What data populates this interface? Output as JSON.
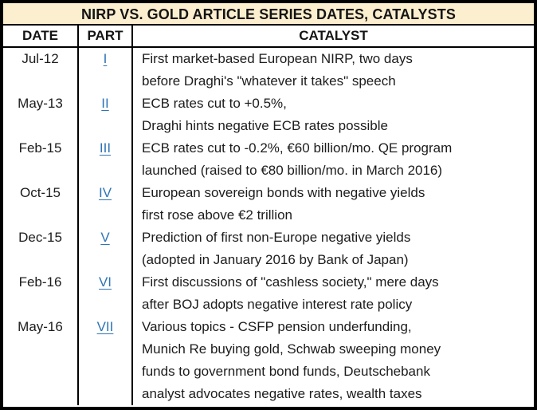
{
  "chart_data": {
    "type": "table",
    "title": "NIRP VS. GOLD ARTICLE SERIES DATES, CATALYSTS",
    "columns": [
      "DATE",
      "PART",
      "CATALYST"
    ],
    "rows": [
      {
        "date": "Jul-12",
        "part": "I",
        "lines": [
          "First market-based European NIRP, two days",
          "before Draghi's \"whatever it takes\" speech"
        ]
      },
      {
        "date": "May-13",
        "part": "II",
        "lines": [
          "ECB rates cut to +0.5%,",
          "Draghi hints negative ECB rates possible"
        ]
      },
      {
        "date": "Feb-15",
        "part": "III",
        "lines": [
          "ECB rates cut to -0.2%, €60 billion/mo. QE program",
          "launched (raised to €80 billion/mo. in March 2016)"
        ]
      },
      {
        "date": "Oct-15",
        "part": "IV",
        "lines": [
          "European sovereign bonds with negative yields",
          "first rose above €2 trillion"
        ]
      },
      {
        "date": "Dec-15",
        "part": "V",
        "lines": [
          "Prediction of first non-Europe negative yields",
          "(adopted in January 2016 by Bank of Japan)"
        ]
      },
      {
        "date": "Feb-16",
        "part": "VI",
        "lines": [
          "First discussions of \"cashless society,\" mere days",
          "after BOJ adopts negative interest rate policy"
        ]
      },
      {
        "date": "May-16",
        "part": "VII",
        "lines": [
          "Various topics - CSFP pension underfunding,",
          "Munich Re buying gold, Schwab sweeping money",
          "funds to government bond funds, Deutschebank",
          "analyst advocates negative rates, wealth taxes"
        ]
      }
    ],
    "colors": {
      "title_background": "#FCEFCF",
      "link_blue": "#2E75B6",
      "border": "#000000"
    }
  }
}
